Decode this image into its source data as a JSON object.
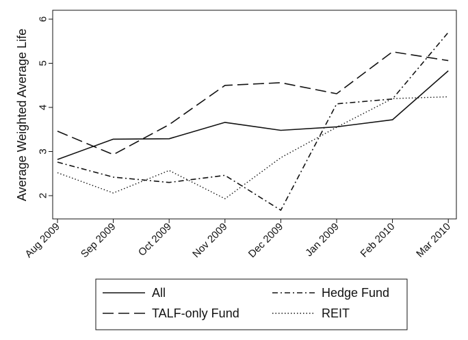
{
  "chart_data": {
    "type": "line",
    "title": "",
    "xlabel": "",
    "ylabel": "Average Weighted Average Life",
    "categories": [
      "Aug 2009",
      "Sep 2009",
      "Oct 2009",
      "Nov 2009",
      "Dec 2009",
      "Jan 2009",
      "Feb 2010",
      "Mar 2010"
    ],
    "yticks": [
      2,
      3,
      4,
      5,
      6
    ],
    "ylim": [
      1.6,
      6.0
    ],
    "grid": false,
    "legend_position": "bottom",
    "series": [
      {
        "name": "All",
        "values": [
          2.82,
          3.28,
          3.29,
          3.66,
          3.48,
          3.56,
          3.72,
          4.83
        ],
        "dash": "solid",
        "color": "#111111"
      },
      {
        "name": "TALF-only Fund",
        "values": [
          3.46,
          2.93,
          3.61,
          4.5,
          4.56,
          4.31,
          5.26,
          5.06
        ],
        "dash": "longdash",
        "color": "#111111"
      },
      {
        "name": "Hedge Fund",
        "values": [
          2.76,
          2.42,
          2.3,
          2.46,
          1.67,
          4.08,
          4.19,
          5.7
        ],
        "dash": "dashdot",
        "color": "#111111"
      },
      {
        "name": "REIT",
        "values": [
          2.52,
          2.06,
          2.57,
          1.93,
          2.86,
          3.55,
          4.2,
          4.24
        ],
        "dash": "dotted",
        "color": "#111111"
      }
    ]
  }
}
